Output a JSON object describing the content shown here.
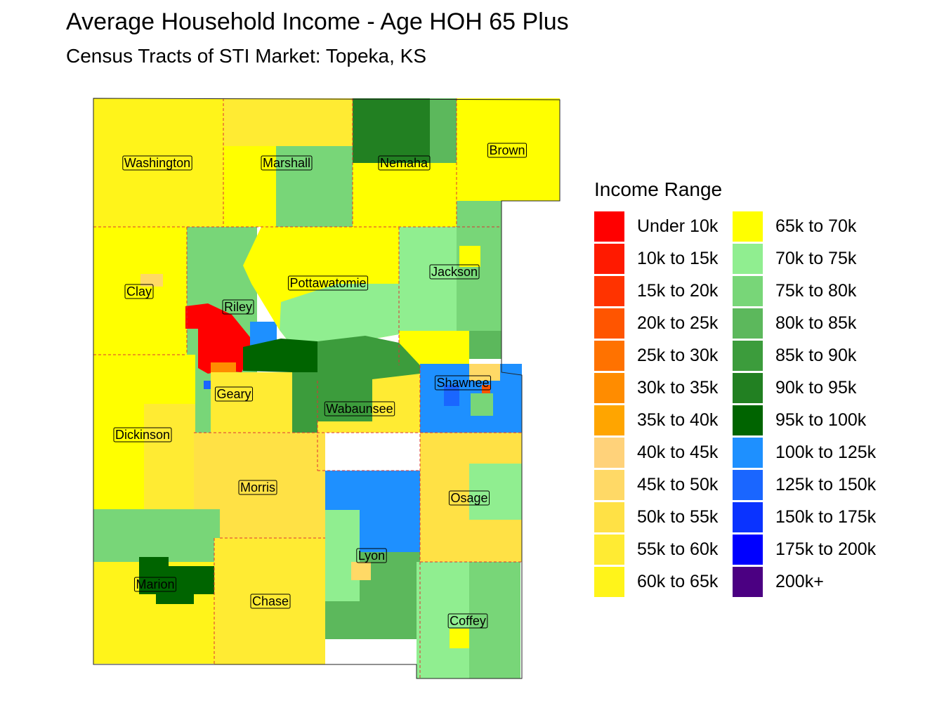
{
  "title": "Average Household Income - Age HOH 65 Plus",
  "subtitle": "Census Tracts of STI Market: Topeka, KS",
  "legend": {
    "title": "Income Range",
    "items": [
      {
        "label": "Under 10k",
        "color": "#ff0000"
      },
      {
        "label": "10k to 15k",
        "color": "#ff1a00"
      },
      {
        "label": "15k to 20k",
        "color": "#ff3300"
      },
      {
        "label": "20k to 25k",
        "color": "#ff5500"
      },
      {
        "label": "25k to 30k",
        "color": "#ff7200"
      },
      {
        "label": "30k to 35k",
        "color": "#ff8c00"
      },
      {
        "label": "35k to 40k",
        "color": "#ffa500"
      },
      {
        "label": "40k to 45k",
        "color": "#ffd27a"
      },
      {
        "label": "45k to 50k",
        "color": "#ffd966"
      },
      {
        "label": "50k to 55k",
        "color": "#ffe145"
      },
      {
        "label": "55k to 60k",
        "color": "#ffeb33"
      },
      {
        "label": "60k to 65k",
        "color": "#fff41a"
      },
      {
        "label": "65k to 70k",
        "color": "#ffff00"
      },
      {
        "label": "70k to 75k",
        "color": "#90ee90"
      },
      {
        "label": "75k to 80k",
        "color": "#78d678"
      },
      {
        "label": "80k to 85k",
        "color": "#5cb85c"
      },
      {
        "label": "85k to 90k",
        "color": "#3c9c3c"
      },
      {
        "label": "90k to 95k",
        "color": "#228022"
      },
      {
        "label": "95k to 100k",
        "color": "#006400"
      },
      {
        "label": "100k to 125k",
        "color": "#1e90ff"
      },
      {
        "label": "125k to 150k",
        "color": "#1a66ff"
      },
      {
        "label": "150k to 175k",
        "color": "#0a33ff"
      },
      {
        "label": "175k to 200k",
        "color": "#0000ff"
      },
      {
        "label": "200k+",
        "color": "#4b0082"
      }
    ]
  },
  "counties": [
    {
      "name": "Washington"
    },
    {
      "name": "Marshall"
    },
    {
      "name": "Nemaha"
    },
    {
      "name": "Brown"
    },
    {
      "name": "Clay"
    },
    {
      "name": "Riley"
    },
    {
      "name": "Pottawatomie"
    },
    {
      "name": "Jackson"
    },
    {
      "name": "Geary"
    },
    {
      "name": "Wabaunsee"
    },
    {
      "name": "Shawnee"
    },
    {
      "name": "Dickinson"
    },
    {
      "name": "Morris"
    },
    {
      "name": "Osage"
    },
    {
      "name": "Lyon"
    },
    {
      "name": "Marion"
    },
    {
      "name": "Chase"
    },
    {
      "name": "Coffey"
    }
  ]
}
